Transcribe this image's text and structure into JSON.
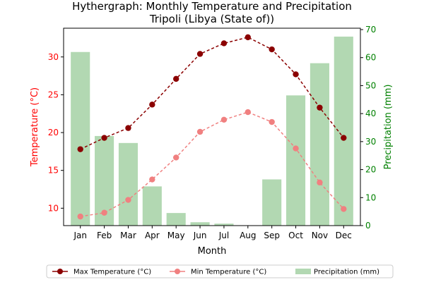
{
  "chart_data": {
    "type": "bar+line",
    "title_line1": "Hythergraph: Monthly Temperature and Precipitation",
    "title_line2": "Tripoli (Libya (State of))",
    "xlabel": "Month",
    "ylabel_left": "Temperature (°C)",
    "ylabel_right": "Precipitation (mm)",
    "categories": [
      "Jan",
      "Feb",
      "Mar",
      "Apr",
      "May",
      "Jun",
      "Jul",
      "Aug",
      "Sep",
      "Oct",
      "Nov",
      "Dec"
    ],
    "left_axis": {
      "min": 7.7,
      "max": 33.8,
      "ticks": [
        10,
        15,
        20,
        25,
        30
      ]
    },
    "right_axis": {
      "min": 0,
      "max": 70.5,
      "ticks": [
        0,
        10,
        20,
        30,
        40,
        50,
        60,
        70
      ]
    },
    "series": [
      {
        "name": "Max Temperature (°C)",
        "kind": "line",
        "axis": "left",
        "color": "#8b0000",
        "dash": "4,3",
        "values": [
          17.8,
          19.3,
          20.6,
          23.7,
          27.1,
          30.4,
          31.8,
          32.6,
          31.0,
          27.7,
          23.3,
          19.3
        ]
      },
      {
        "name": "Min Temperature (°C)",
        "kind": "line",
        "axis": "left",
        "color": "#f08080",
        "dash": "4,3",
        "values": [
          8.9,
          9.4,
          11.1,
          13.8,
          16.7,
          20.1,
          21.7,
          22.7,
          21.4,
          17.9,
          13.4,
          9.9
        ]
      },
      {
        "name": "Precipitation (mm)",
        "kind": "bar",
        "axis": "right",
        "color": "#b2d8b2",
        "values": [
          62,
          32,
          29.5,
          14,
          4.5,
          1.2,
          0.7,
          0,
          16.5,
          46.5,
          58,
          67.5
        ]
      }
    ],
    "left_axis_color": "#ff0000",
    "right_axis_color": "#008000",
    "legend_position": "bottom-center",
    "grid": false
  }
}
